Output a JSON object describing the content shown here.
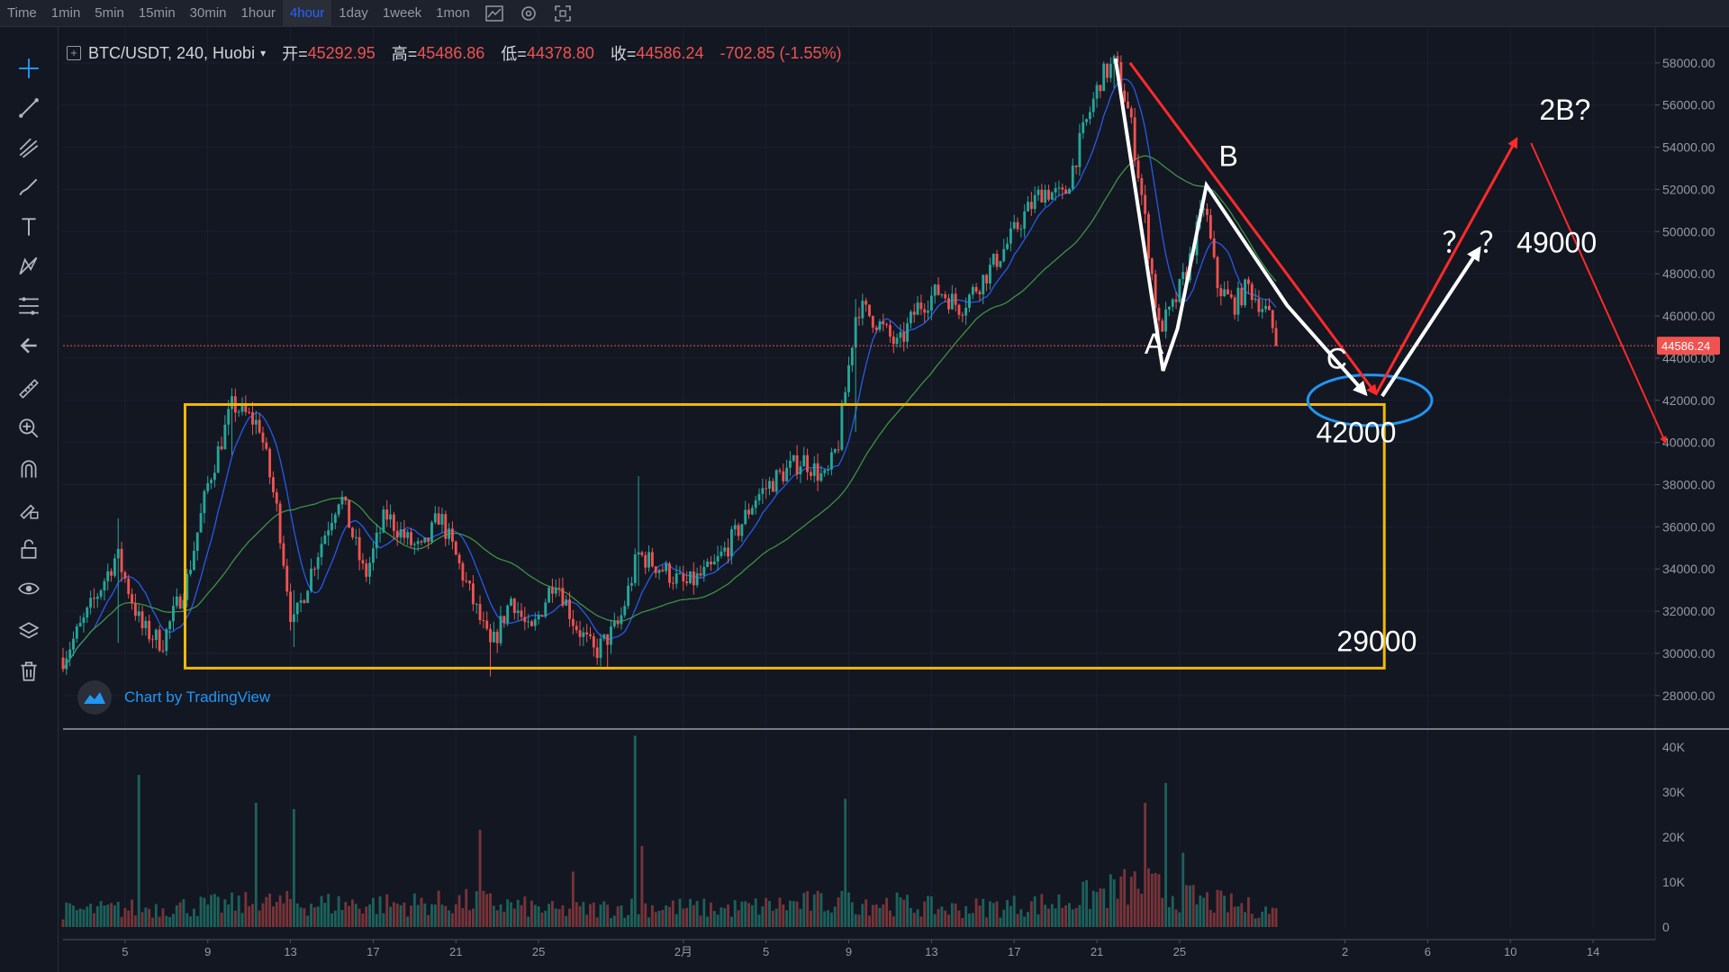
{
  "toolbar": {
    "timeframes": [
      {
        "label": "Time",
        "active": false
      },
      {
        "label": "1min",
        "active": false
      },
      {
        "label": "5min",
        "active": false
      },
      {
        "label": "15min",
        "active": false
      },
      {
        "label": "30min",
        "active": false
      },
      {
        "label": "1hour",
        "active": false
      },
      {
        "label": "4hour",
        "active": true
      },
      {
        "label": "1day",
        "active": false
      },
      {
        "label": "1week",
        "active": false
      },
      {
        "label": "1mon",
        "active": false
      }
    ],
    "icons": [
      "indicator-icon",
      "settings-icon",
      "fullscreen-icon"
    ]
  },
  "sidebar": {
    "tools": [
      "crosshair-icon",
      "trend-line-icon",
      "pitchfork-icon",
      "brush-icon",
      "text-icon",
      "pattern-icon",
      "fib-icon",
      "back-arrow-icon",
      "ruler-icon",
      "zoom-in-icon",
      "magnet-icon",
      "lock-drawing-icon",
      "unlock-icon",
      "eye-icon",
      "layers-icon",
      "trash-icon"
    ]
  },
  "legend": {
    "symbol": "BTC/USDT, 240, Huobi",
    "open_label": "开=",
    "open": "45292.95",
    "high_label": "高=",
    "high": "45486.86",
    "low_label": "低=",
    "low": "44378.80",
    "close_label": "收=",
    "close": "44586.24",
    "change": "-702.85 (-1.55%)"
  },
  "watermark": "Chart by TradingView",
  "colors": {
    "background": "#131722",
    "up": "#26a69a",
    "down": "#ef5350",
    "ma_fast": "#2962ff",
    "ma_slow": "#43a047",
    "box": "#f0b90b",
    "ellipse": "#2196f3",
    "red_arrow": "#ff2a2a",
    "white_arrow": "#ffffff"
  },
  "chart_data": {
    "type": "candlestick",
    "symbol": "BTC/USDT",
    "interval": "240",
    "exchange": "Huobi",
    "price_axis": {
      "ticks": [
        "28000.00",
        "30000.00",
        "32000.00",
        "34000.00",
        "36000.00",
        "38000.00",
        "40000.00",
        "42000.00",
        "44000.00",
        "46000.00",
        "48000.00",
        "50000.00",
        "52000.00",
        "54000.00",
        "56000.00",
        "58000.00"
      ],
      "ylim": [
        26500,
        59700
      ],
      "last_price": 44586.24,
      "last_price_label": "44586.24"
    },
    "volume_axis": {
      "ticks": [
        "0",
        "10K",
        "20K",
        "30K",
        "40K"
      ],
      "ylim": [
        0,
        42000
      ]
    },
    "x_axis": {
      "tick_labels": [
        "5",
        "9",
        "13",
        "17",
        "21",
        "25",
        "2月",
        "5",
        "9",
        "13",
        "17",
        "21",
        "25",
        "2",
        "6",
        "10",
        "14"
      ],
      "tick_days": [
        5,
        9,
        13,
        17,
        21,
        25,
        32,
        36,
        40,
        44,
        48,
        52,
        56,
        64,
        68,
        72,
        76
      ],
      "xlim": [
        2,
        79
      ],
      "last_bar_day": 60.8
    },
    "anchors": [
      [
        2,
        29800
      ],
      [
        3,
        31500
      ],
      [
        4.6,
        34700
      ],
      [
        5.8,
        31200
      ],
      [
        6.8,
        30500
      ],
      [
        8,
        33500
      ],
      [
        9,
        38000
      ],
      [
        10.2,
        41800
      ],
      [
        11.5,
        40800
      ],
      [
        12.4,
        36500
      ],
      [
        13.1,
        31200
      ],
      [
        14.2,
        34500
      ],
      [
        15.4,
        37600
      ],
      [
        16.6,
        33600
      ],
      [
        17.6,
        36600
      ],
      [
        18.7,
        35300
      ],
      [
        19.4,
        34800
      ],
      [
        20.2,
        36600
      ],
      [
        21.5,
        33300
      ],
      [
        22.7,
        30200
      ],
      [
        23.7,
        32700
      ],
      [
        24.6,
        30800
      ],
      [
        25.8,
        33700
      ],
      [
        26.7,
        31500
      ],
      [
        27.7,
        30000
      ],
      [
        28.9,
        31400
      ],
      [
        29.8,
        34700
      ],
      [
        31,
        34000
      ],
      [
        32.1,
        33200
      ],
      [
        33.4,
        34000
      ],
      [
        34.5,
        35600
      ],
      [
        35.5,
        37400
      ],
      [
        36.6,
        38400
      ],
      [
        37.8,
        39200
      ],
      [
        38.9,
        38200
      ],
      [
        39.5,
        40000
      ],
      [
        40.4,
        46500
      ],
      [
        41.3,
        45800
      ],
      [
        42.4,
        44500
      ],
      [
        43.3,
        46400
      ],
      [
        44.4,
        47200
      ],
      [
        45.4,
        46400
      ],
      [
        46.6,
        47900
      ],
      [
        47.6,
        49300
      ],
      [
        48.5,
        50800
      ],
      [
        49.4,
        52000
      ],
      [
        50.4,
        51600
      ],
      [
        51.3,
        54600
      ],
      [
        52.2,
        57300
      ],
      [
        52.9,
        58000
      ],
      [
        53.6,
        55400
      ],
      [
        54.2,
        51500
      ],
      [
        55,
        45400
      ],
      [
        55.6,
        46200
      ],
      [
        56.4,
        48300
      ],
      [
        57.2,
        51400
      ],
      [
        57.8,
        47500
      ],
      [
        58.6,
        46500
      ],
      [
        59.3,
        47400
      ],
      [
        60.2,
        46200
      ],
      [
        60.8,
        44600
      ]
    ],
    "spikes": [
      {
        "day": 4.6,
        "high": 36400,
        "low": 30500
      },
      {
        "day": 10.2,
        "high": 42100,
        "low": 39400
      },
      {
        "day": 13.1,
        "high": 33000,
        "low": 30300
      },
      {
        "day": 22.7,
        "high": 31400,
        "low": 28900
      },
      {
        "day": 28.4,
        "high": 29900,
        "low": 29300
      },
      {
        "day": 29.8,
        "high": 38400,
        "low": 33200
      },
      {
        "day": 40.4,
        "high": 46800,
        "low": 40500
      },
      {
        "day": 52.9,
        "high": 58400,
        "low": 56800
      },
      {
        "day": 55,
        "high": 46200,
        "low": 44100
      }
    ],
    "volume_profile": [
      [
        2,
        3600
      ],
      [
        6,
        4200
      ],
      [
        12,
        5300
      ],
      [
        18,
        5000
      ],
      [
        22,
        5600
      ],
      [
        26,
        3600
      ],
      [
        30,
        4600
      ],
      [
        34,
        4000
      ],
      [
        38,
        5300
      ],
      [
        41,
        5600
      ],
      [
        45,
        4000
      ],
      [
        50,
        5300
      ],
      [
        54,
        9300
      ],
      [
        57,
        6000
      ],
      [
        60.8,
        3300
      ]
    ],
    "volume_spikes": [
      {
        "day": 5.6,
        "value": 33800
      },
      {
        "day": 11.3,
        "value": 27600
      },
      {
        "day": 13.1,
        "value": 26200
      },
      {
        "day": 22.2,
        "value": 21600
      },
      {
        "day": 26.6,
        "value": 12300
      },
      {
        "day": 29.6,
        "value": 42500
      },
      {
        "day": 30,
        "value": 18000
      },
      {
        "day": 39.8,
        "value": 28500
      },
      {
        "day": 54.4,
        "value": 27600
      },
      {
        "day": 55.3,
        "value": 32000
      },
      {
        "day": 56.2,
        "value": 16500
      }
    ],
    "moving_averages": [
      {
        "type": "ma_fast",
        "period": 10
      },
      {
        "type": "ma_slow",
        "period": 40
      }
    ],
    "annotations": {
      "box": {
        "x0": 7.9,
        "x1": 65.9,
        "y0": 29300,
        "y1": 41800
      },
      "ellipse": {
        "cx": 65.2,
        "cy": 42000,
        "rx": 3,
        "ry": 1200
      },
      "white_path": [
        [
          52.9,
          58200
        ],
        [
          55.2,
          43400
        ],
        [
          55.9,
          45400
        ],
        [
          57.3,
          52200
        ],
        [
          61.2,
          46500
        ],
        [
          65,
          42300
        ]
      ],
      "red_line_1": [
        [
          53.6,
          58000
        ],
        [
          65.5,
          42300
        ]
      ],
      "red_line_2": [
        [
          65.5,
          42300
        ],
        [
          72.3,
          54400
        ]
      ],
      "red_line_3": [
        [
          73,
          54200
        ],
        [
          79.5,
          40000
        ]
      ],
      "white_arrow_up": [
        [
          65.8,
          42200
        ],
        [
          70.5,
          49200
        ]
      ],
      "labels": [
        {
          "text": "A",
          "day": 54.3,
          "price": 44200
        },
        {
          "text": "B",
          "day": 57.9,
          "price": 53100
        },
        {
          "text": "C",
          "day": 63.1,
          "price": 43500
        },
        {
          "text": "42000",
          "day": 62.6,
          "price": 40000
        },
        {
          "text": "29000",
          "day": 63.6,
          "price": 30100
        },
        {
          "text": "？ ？",
          "day": 68.7,
          "price": 49000
        },
        {
          "text": "49000",
          "day": 72.3,
          "price": 49000
        },
        {
          "text": "2B?",
          "day": 73.4,
          "price": 55300
        }
      ]
    }
  }
}
